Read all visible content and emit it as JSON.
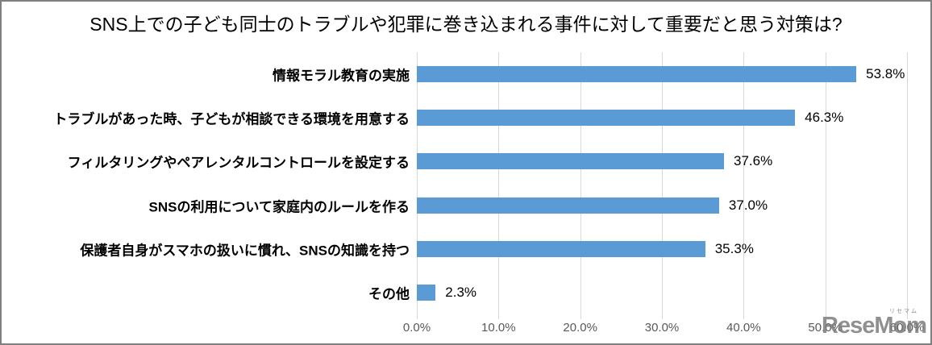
{
  "chart_data": {
    "type": "bar",
    "orientation": "horizontal",
    "title": "SNS上での子ども同士のトラブルや犯罪に巻き込まれる事件に対して重要だと思う対策は?",
    "categories": [
      "情報モラル教育の実施",
      "トラブルがあった時、子どもが相談できる環境を用意する",
      "フィルタリングやペアレンタルコントロールを設定する",
      "SNSの利用について家庭内のルールを作る",
      "保護者自身がスマホの扱いに慣れ、SNSの知識を持つ",
      "その他"
    ],
    "values": [
      53.8,
      46.3,
      37.6,
      37.0,
      35.3,
      2.3
    ],
    "value_labels": [
      "53.8%",
      "46.3%",
      "37.6%",
      "37.0%",
      "35.3%",
      "2.3%"
    ],
    "xlim": [
      0,
      60
    ],
    "x_tick_values": [
      0,
      10,
      20,
      30,
      40,
      50,
      60
    ],
    "x_tick_labels": [
      "0.0%",
      "10.0%",
      "20.0%",
      "30.0%",
      "40.0%",
      "50.0%",
      "60.0%"
    ],
    "grid": true,
    "legend_position": "none",
    "bar_color": "#5b9bd5",
    "gridline_color": "#d9d9d9",
    "axis_label_color": "#595959"
  },
  "watermark": {
    "text": "ReseMom",
    "ruby": "リセマム"
  }
}
